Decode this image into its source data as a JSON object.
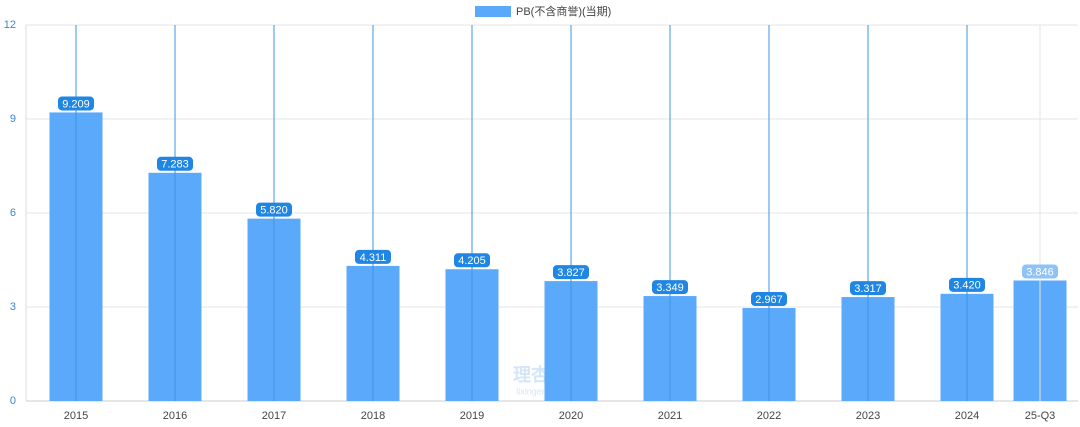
{
  "chart_data": {
    "type": "bar",
    "legend": "PB(不含商誉)(当期)",
    "watermark": {
      "main": "理杏仁",
      "sub": "lixinger.com"
    },
    "categories": [
      "2015",
      "2016",
      "2017",
      "2018",
      "2019",
      "2020",
      "2021",
      "2022",
      "2023",
      "2024",
      "25-Q3"
    ],
    "values": [
      9.209,
      7.283,
      5.82,
      4.311,
      4.205,
      3.827,
      3.349,
      2.967,
      3.317,
      3.42,
      3.846
    ],
    "value_labels": [
      "9.209",
      "7.283",
      "5.820",
      "4.311",
      "4.205",
      "3.827",
      "3.349",
      "2.967",
      "3.317",
      "3.420",
      "3.846"
    ],
    "color": "#5ba9fb",
    "ylim": [
      0,
      12
    ],
    "yticks": [
      0,
      3,
      6,
      9,
      12
    ],
    "grid": true
  }
}
